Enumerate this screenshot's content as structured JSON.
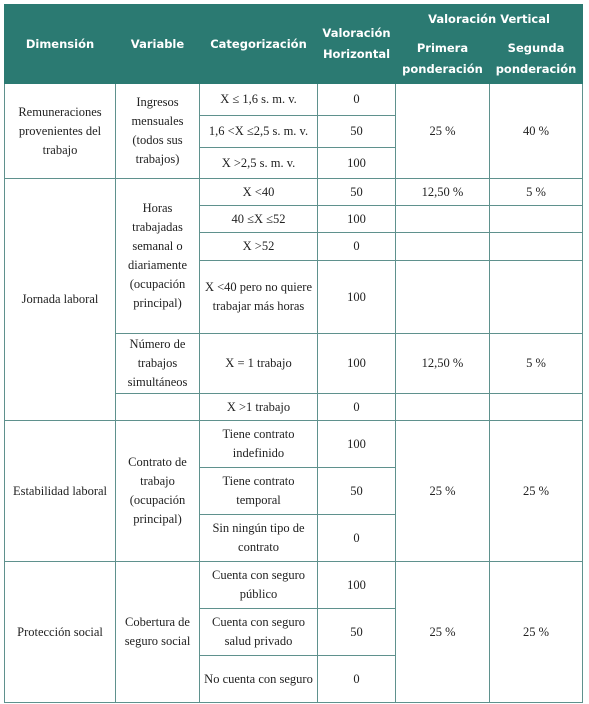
{
  "header": {
    "columns": [
      "Dimensión",
      "Variable",
      "Categorización",
      "Valoración Horizontal"
    ],
    "vertical_group": "Valoración Vertical",
    "vertical_columns": [
      "Primera ponderación",
      "Segunda ponderación"
    ]
  },
  "sections": [
    {
      "dimension": "Remuneraciones provenientes del trabajo",
      "variable": "Ingresos mensuales (todos sus trabajos)",
      "rows": [
        {
          "category": "X ≤ 1,6 s. m. v.",
          "horizontal": 0
        },
        {
          "category": "1,6 <X ≤2,5 s. m. v.",
          "horizontal": 50
        },
        {
          "category": "X >2,5 s. m. v.",
          "horizontal": 100
        }
      ],
      "primera": "25 %",
      "segunda": "40 %"
    },
    {
      "dimension": "Jornada laboral",
      "variables": [
        {
          "variable": "Horas trabajadas semanal o diariamente (ocupación principal)",
          "rows": [
            {
              "category": "X <40",
              "horizontal": 50,
              "primera": "12,50 %",
              "segunda": "5 %"
            },
            {
              "category": "40 ≤X ≤52",
              "horizontal": 100
            },
            {
              "category": "X >52",
              "horizontal": 0
            },
            {
              "category": "X <40 pero no quiere trabajar más horas",
              "horizontal": 100
            }
          ]
        },
        {
          "variable": "Número de trabajos simultáneos",
          "rows": [
            {
              "category": "X = 1 trabajo",
              "horizontal": 100,
              "primera": "12,50 %",
              "segunda": "5 %"
            },
            {
              "category": "X >1 trabajo",
              "horizontal": 0
            }
          ]
        }
      ]
    },
    {
      "dimension": "Estabilidad laboral",
      "variable": "Contrato de trabajo (ocupación principal)",
      "rows": [
        {
          "category": "Tiene contrato indefinido",
          "horizontal": 100
        },
        {
          "category": "Tiene contrato temporal",
          "horizontal": 50
        },
        {
          "category": "Sin ningún tipo de contrato",
          "horizontal": 0
        }
      ],
      "primera": "25 %",
      "segunda": "25 %"
    },
    {
      "dimension": "Protección social",
      "variable": "Cobertura de seguro social",
      "rows": [
        {
          "category": "Cuenta con seguro público",
          "horizontal": 100
        },
        {
          "category": "Cuenta con seguro salud privado",
          "horizontal": 50
        },
        {
          "category": "No cuenta con seguro",
          "horizontal": 0
        }
      ],
      "primera": "25 %",
      "segunda": "25 %"
    }
  ]
}
